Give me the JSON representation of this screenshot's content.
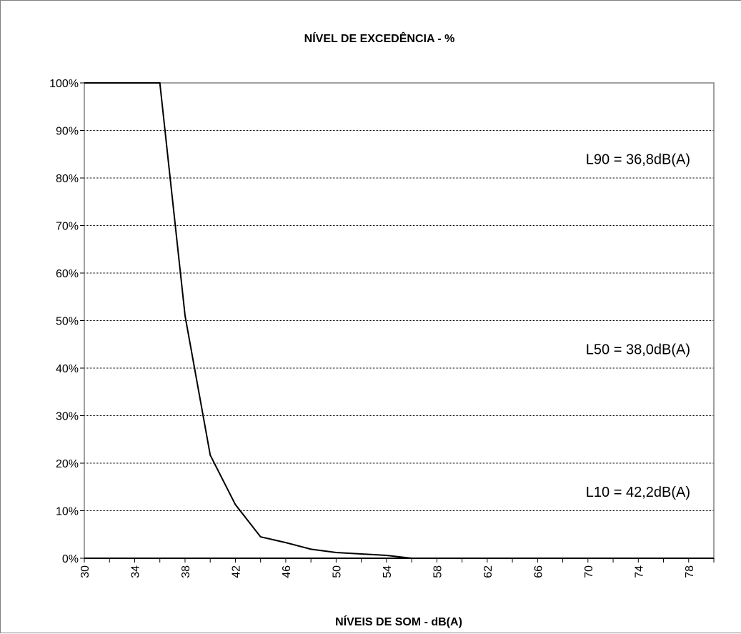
{
  "chart_data": {
    "type": "line",
    "title": "NÍVEL DE EXCEDÊNCIA - %",
    "xlabel": "NÍVEIS DE SOM - dB(A)",
    "ylabel": "",
    "xlim": [
      30,
      80
    ],
    "ylim": [
      0,
      100
    ],
    "x_ticks": [
      30,
      34,
      38,
      42,
      46,
      50,
      54,
      58,
      62,
      66,
      70,
      74,
      78
    ],
    "y_ticks": [
      0,
      10,
      20,
      30,
      40,
      50,
      60,
      70,
      80,
      90,
      100
    ],
    "y_tick_labels": [
      "0%",
      "10%",
      "20%",
      "30%",
      "40%",
      "50%",
      "60%",
      "70%",
      "80%",
      "90%",
      "100%"
    ],
    "grid": "horizontal",
    "series": [
      {
        "x": [
          30,
          32,
          34,
          36,
          38,
          40,
          42,
          44,
          46,
          48,
          50,
          52,
          54,
          56,
          58,
          60,
          62,
          64,
          66,
          68,
          70,
          72,
          74,
          76,
          78,
          80
        ],
        "y": [
          100,
          100,
          100,
          100,
          51,
          21.7,
          11.3,
          4.5,
          3.3,
          1.9,
          1.2,
          0.9,
          0.6,
          0.0,
          0,
          0,
          0,
          0,
          0,
          0,
          0,
          0,
          0,
          0,
          0,
          0
        ],
        "color": "#000000"
      }
    ],
    "annotations": [
      {
        "text": "L90 =  36,8dB(A)",
        "y": 84
      },
      {
        "text": "L50 =  38,0dB(A)",
        "y": 44
      },
      {
        "text": "L10 =  42,2dB(A)",
        "y": 14
      }
    ]
  }
}
